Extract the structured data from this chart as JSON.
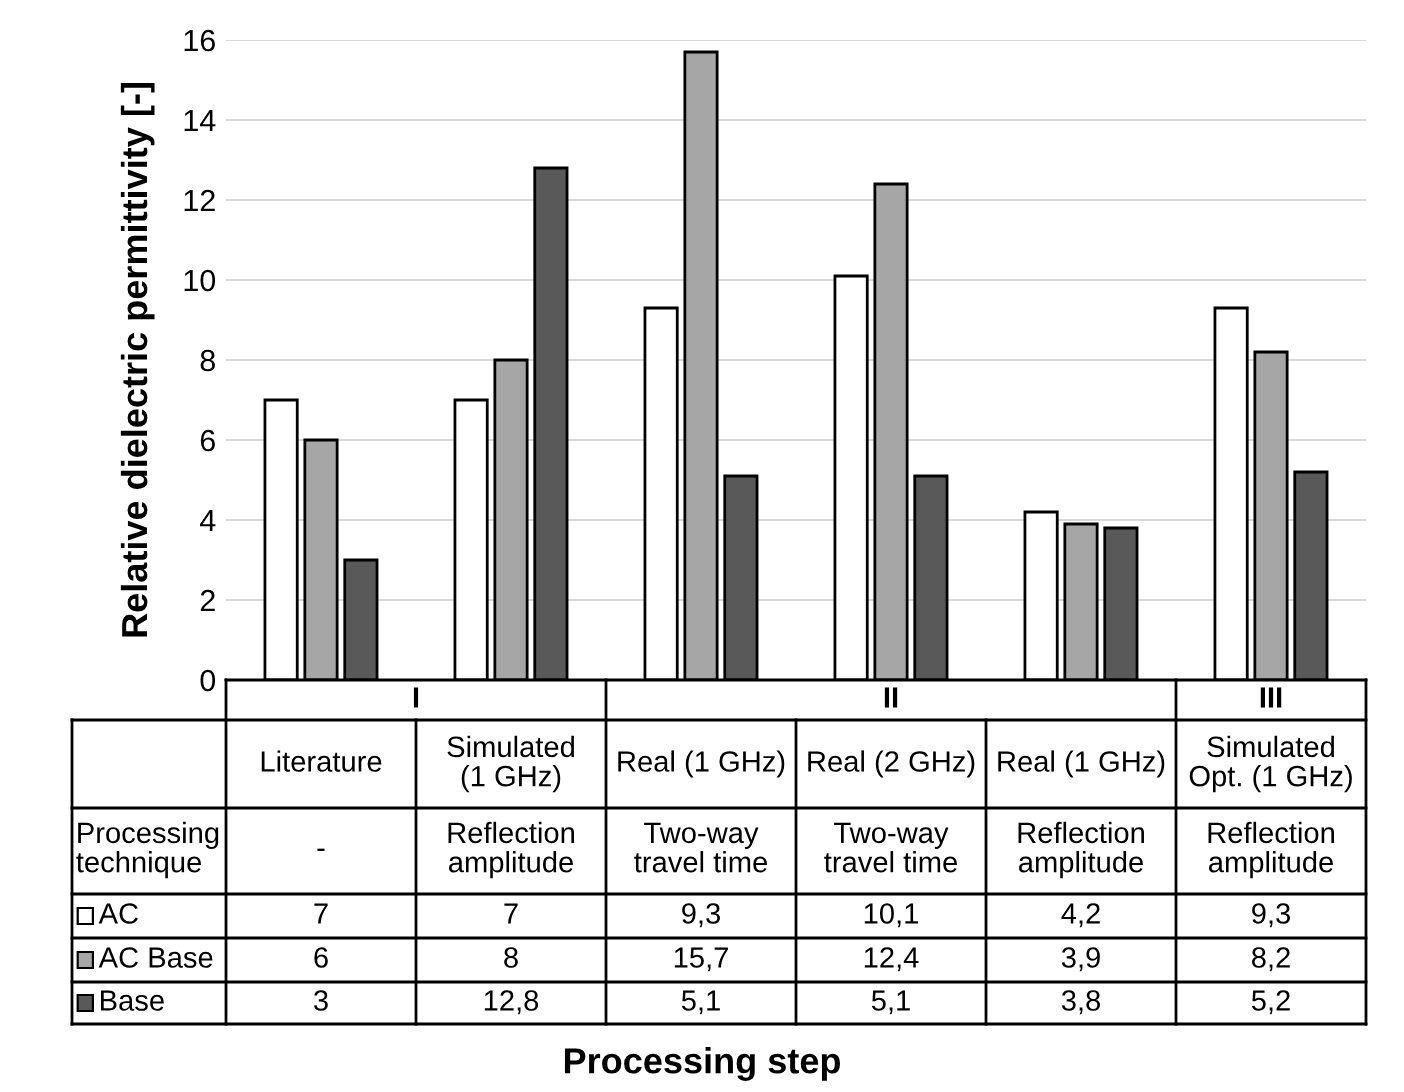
{
  "chart_data": {
    "type": "bar",
    "categories": [
      "Literature",
      "Simulated\n(1 GHz)",
      "Real (1 GHz)",
      "Real (2 GHz)",
      "Real (1 GHz)",
      "Simulated\nOpt. (1 GHz)"
    ],
    "series": [
      {
        "name": "AC",
        "color": "#ffffff",
        "values": [
          7,
          7,
          9.3,
          10.1,
          4.2,
          9.3
        ],
        "value_labels": [
          "7",
          "7",
          "9,3",
          "10,1",
          "4,2",
          "9,3"
        ]
      },
      {
        "name": "AC Base",
        "color": "#a6a6a6",
        "values": [
          6,
          8,
          15.7,
          12.4,
          3.9,
          8.2
        ],
        "value_labels": [
          "6",
          "8",
          "15,7",
          "12,4",
          "3,9",
          "8,2"
        ]
      },
      {
        "name": "Base",
        "color": "#595959",
        "values": [
          3,
          12.8,
          5.1,
          5.1,
          3.8,
          5.2
        ],
        "value_labels": [
          "3",
          "12,8",
          "5,1",
          "5,1",
          "3,8",
          "5,2"
        ]
      }
    ],
    "ylabel": "Relative dielectric permittivity [-]",
    "ylim": [
      0,
      16
    ],
    "yticks": [
      0,
      2,
      4,
      6,
      8,
      10,
      12,
      14,
      16
    ],
    "grid": "y",
    "legend": "bottom",
    "annotations": [
      "I",
      "II",
      "III",
      "Processing\ntechnique",
      "-",
      "Reflection\namplitude",
      "Two-way\ntravel time",
      "Two-way\ntravel time",
      "Reflection\namplitude",
      "Reflection\namplitude",
      "Processing step"
    ]
  }
}
